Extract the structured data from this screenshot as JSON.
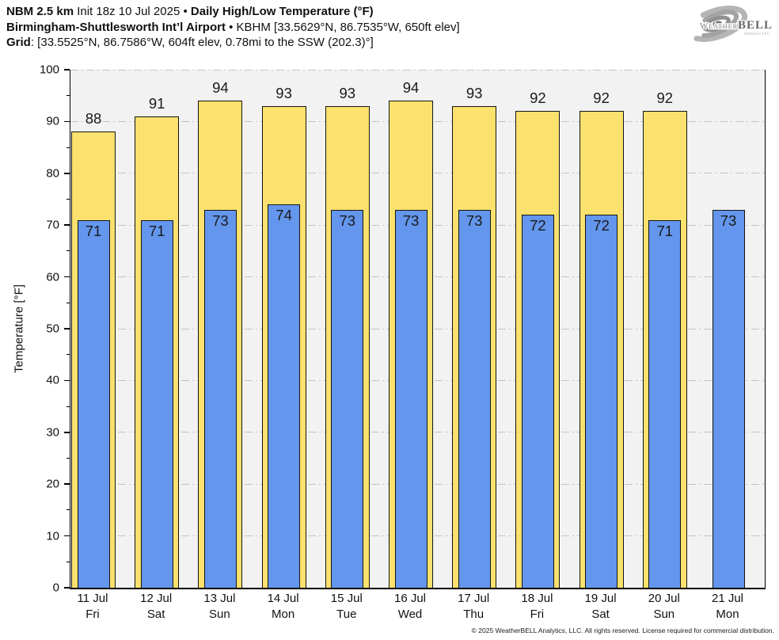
{
  "logo": {
    "weather": "Weather",
    "bell": "BELL",
    "sub": "Analytics LLC"
  },
  "chart_data": {
    "type": "bar",
    "header": {
      "model": "NBM 2.5 km",
      "init": " Init 18z 10 Jul 2025 • ",
      "product": "Daily High/Low Temperature (°F)",
      "station": "Birmingham-Shuttlesworth Int’l Airport",
      "station_info": " • KBHM [33.5629°N, 86.7535°W, 650ft elev]",
      "grid_label": "Grid",
      "grid_info": ": [33.5525°N, 86.7586°W, 604ft elev, 0.78mi to the SSW (202.3)°]"
    },
    "ylabel": "Temperature [°F]",
    "xlabel": "",
    "ylim": [
      0,
      100
    ],
    "ytick_major": 10,
    "ytick_minor": 5,
    "grid": true,
    "legend": "none",
    "categories": [
      {
        "date": "11 Jul",
        "day": "Fri"
      },
      {
        "date": "12 Jul",
        "day": "Sat"
      },
      {
        "date": "13 Jul",
        "day": "Sun"
      },
      {
        "date": "14 Jul",
        "day": "Mon"
      },
      {
        "date": "15 Jul",
        "day": "Tue"
      },
      {
        "date": "16 Jul",
        "day": "Wed"
      },
      {
        "date": "17 Jul",
        "day": "Thu"
      },
      {
        "date": "18 Jul",
        "day": "Fri"
      },
      {
        "date": "19 Jul",
        "day": "Sat"
      },
      {
        "date": "20 Jul",
        "day": "Sun"
      },
      {
        "date": "21 Jul",
        "day": "Mon"
      }
    ],
    "series": [
      {
        "name": "Daily High",
        "color": "#fbe16e",
        "values": [
          88,
          91,
          94,
          93,
          93,
          94,
          93,
          92,
          92,
          92,
          null
        ]
      },
      {
        "name": "Daily Low",
        "color": "#6396ec",
        "values": [
          71,
          71,
          73,
          74,
          73,
          73,
          73,
          72,
          72,
          71,
          73
        ]
      }
    ]
  },
  "footer": {
    "copyright": "© 2025 WeatherBELL Analytics, LLC. All rights reserved. License required for commercial distribution."
  }
}
